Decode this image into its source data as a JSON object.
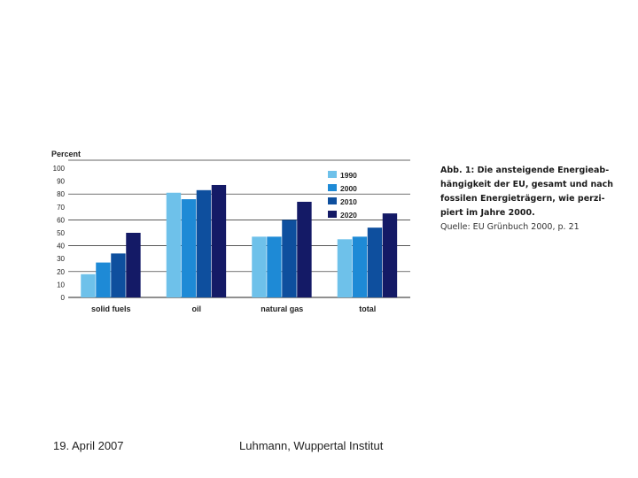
{
  "chart_data": {
    "type": "bar",
    "ylabel": "Percent",
    "ylim": [
      0,
      100
    ],
    "yticks": [
      0,
      10,
      20,
      30,
      40,
      50,
      60,
      70,
      80,
      90,
      100
    ],
    "categories": [
      "solid fuels",
      "oil",
      "natural gas",
      "total"
    ],
    "series": [
      {
        "name": "1990",
        "color": "#6ec1ea",
        "values": [
          18,
          81,
          47,
          45
        ]
      },
      {
        "name": "2000",
        "color": "#1e8ad6",
        "values": [
          27,
          76,
          47,
          47
        ]
      },
      {
        "name": "2010",
        "color": "#0e4f9e",
        "values": [
          34,
          83,
          60,
          54
        ]
      },
      {
        "name": "2020",
        "color": "#141a66",
        "values": [
          50,
          87,
          74,
          65
        ]
      }
    ],
    "legend_position": "top-right",
    "grid": true
  },
  "caption": {
    "title": "Abb. 1: Die ansteigende Energieab-\nhängigkeit der EU, gesamt und nach\nfossilen Energieträgern, wie perzi-\npiert im Jahre 2000.",
    "source": "Quelle: EU Grünbuch 2000, p. 21"
  },
  "footer": {
    "date": "19. April 2007",
    "author": "Luhmann,  Wuppertal Institut"
  }
}
